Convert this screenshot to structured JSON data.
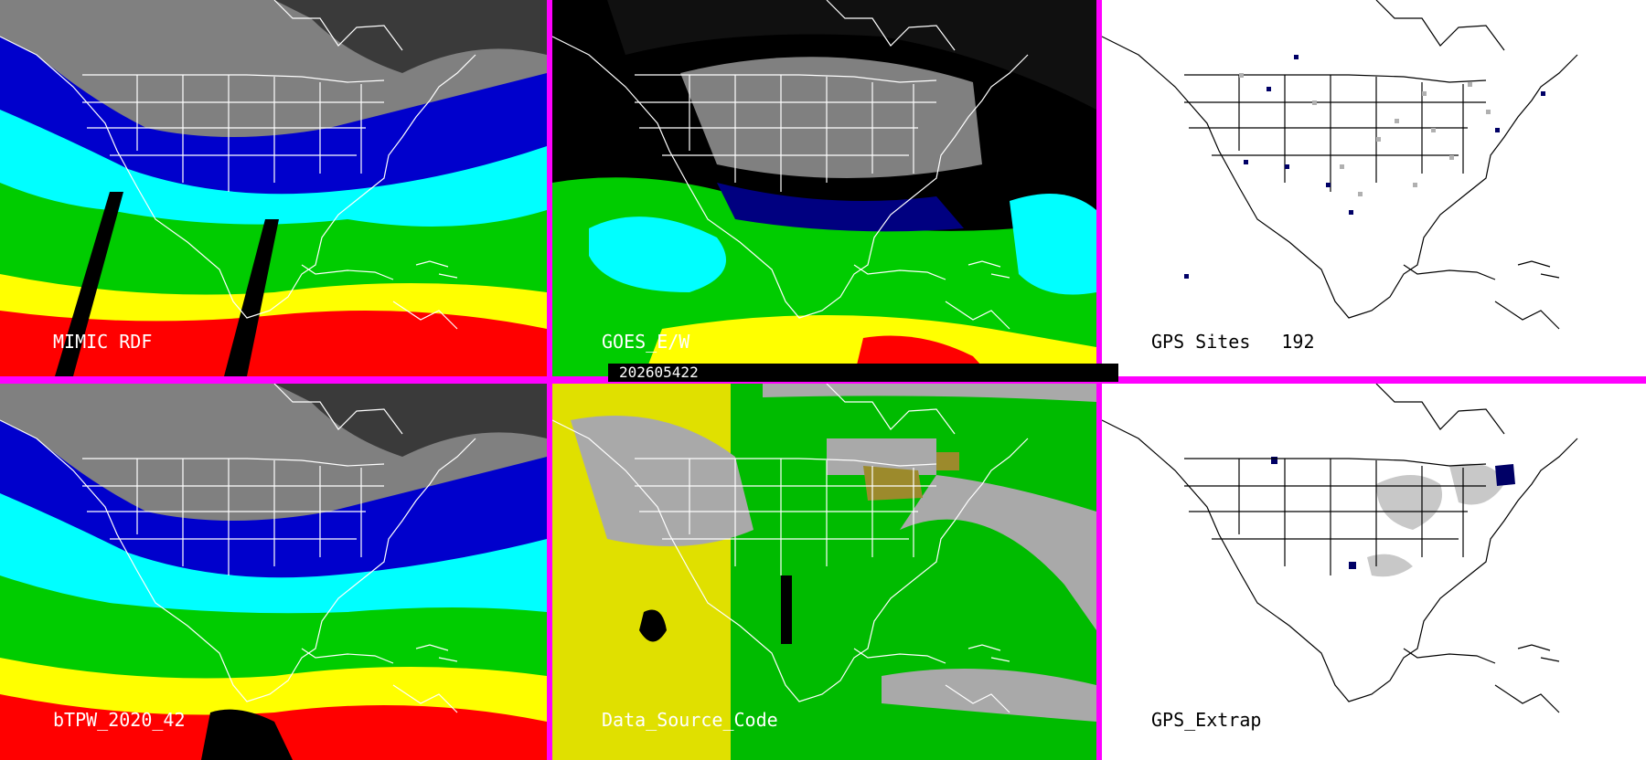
{
  "panels": {
    "mimic_rdf": {
      "label": "MIMIC RDF"
    },
    "goes_ew": {
      "label": "GOES_E/W"
    },
    "gps_sites": {
      "label": "GPS Sites",
      "count": "192"
    },
    "btpw": {
      "label": "bTPW_2020_42"
    },
    "data_source": {
      "label": "Data_Source_Code"
    },
    "gps_extrap": {
      "label": "GPS_Extrap"
    }
  },
  "timestamp": "202605422",
  "colors": {
    "separator": "#ff00ff",
    "tpw_ramp": [
      "#808080",
      "#000080",
      "#0000ff",
      "#00ffff",
      "#00ff00",
      "#ffff00",
      "#ff8000",
      "#ff0000"
    ],
    "source_gray": "#a9a9a9",
    "source_green": "#00bb00",
    "source_yellow": "#e0e000",
    "source_olive": "#9c8a2c",
    "gps_site_marker": "#000066",
    "gps_extrap_marker": "#000066"
  }
}
